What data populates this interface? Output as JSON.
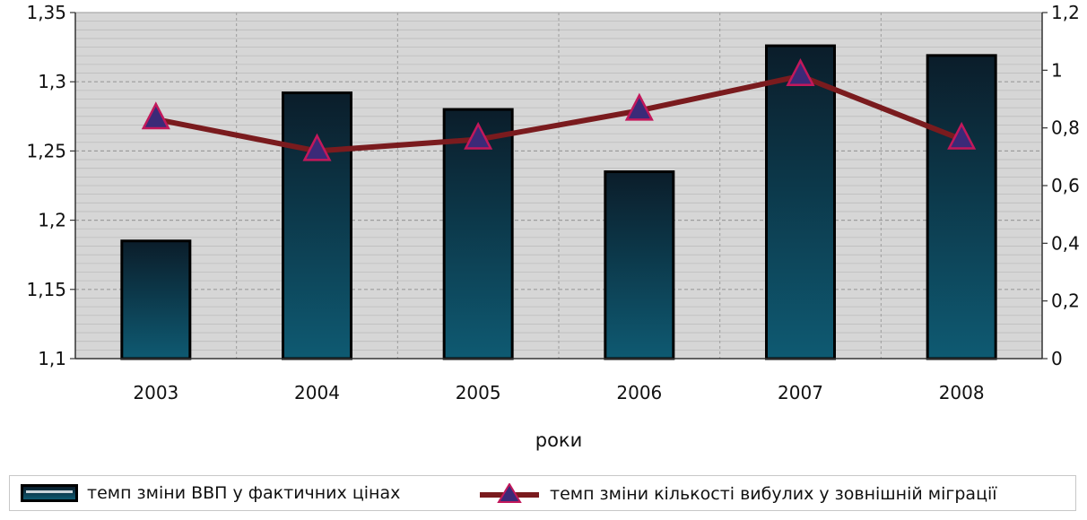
{
  "chart_data": {
    "type": "bar",
    "categories": [
      "2003",
      "2004",
      "2005",
      "2006",
      "2007",
      "2008"
    ],
    "series": [
      {
        "name": "темп зміни ВВП у фактичних цінах",
        "type": "bar",
        "axis": "left",
        "values": [
          1.185,
          1.292,
          1.28,
          1.235,
          1.326,
          1.319
        ]
      },
      {
        "name": "темп зміни кількості вибулих у зовнішній міграції",
        "type": "line",
        "axis": "right",
        "values": [
          0.83,
          0.72,
          0.76,
          0.86,
          0.98,
          0.76
        ]
      }
    ],
    "xlabel": "роки",
    "y_left": {
      "min": 1.1,
      "max": 1.35,
      "ticks": [
        "1,1",
        "1,15",
        "1,2",
        "1,25",
        "1,3",
        "1,35"
      ]
    },
    "y_right": {
      "min": 0,
      "max": 1.2,
      "ticks": [
        "0",
        "0,2",
        "0,4",
        "0,6",
        "0,8",
        "1",
        "1,2"
      ]
    },
    "grid": true,
    "legend_position": "bottom",
    "colors": {
      "bar_top": "#0b1d2a",
      "bar_bottom": "#0e5a72",
      "line": "#7a1b1e",
      "marker_fill": "#3b2a78",
      "marker_edge": "#c2185b",
      "plot_bg": "#d6d6d6"
    }
  }
}
